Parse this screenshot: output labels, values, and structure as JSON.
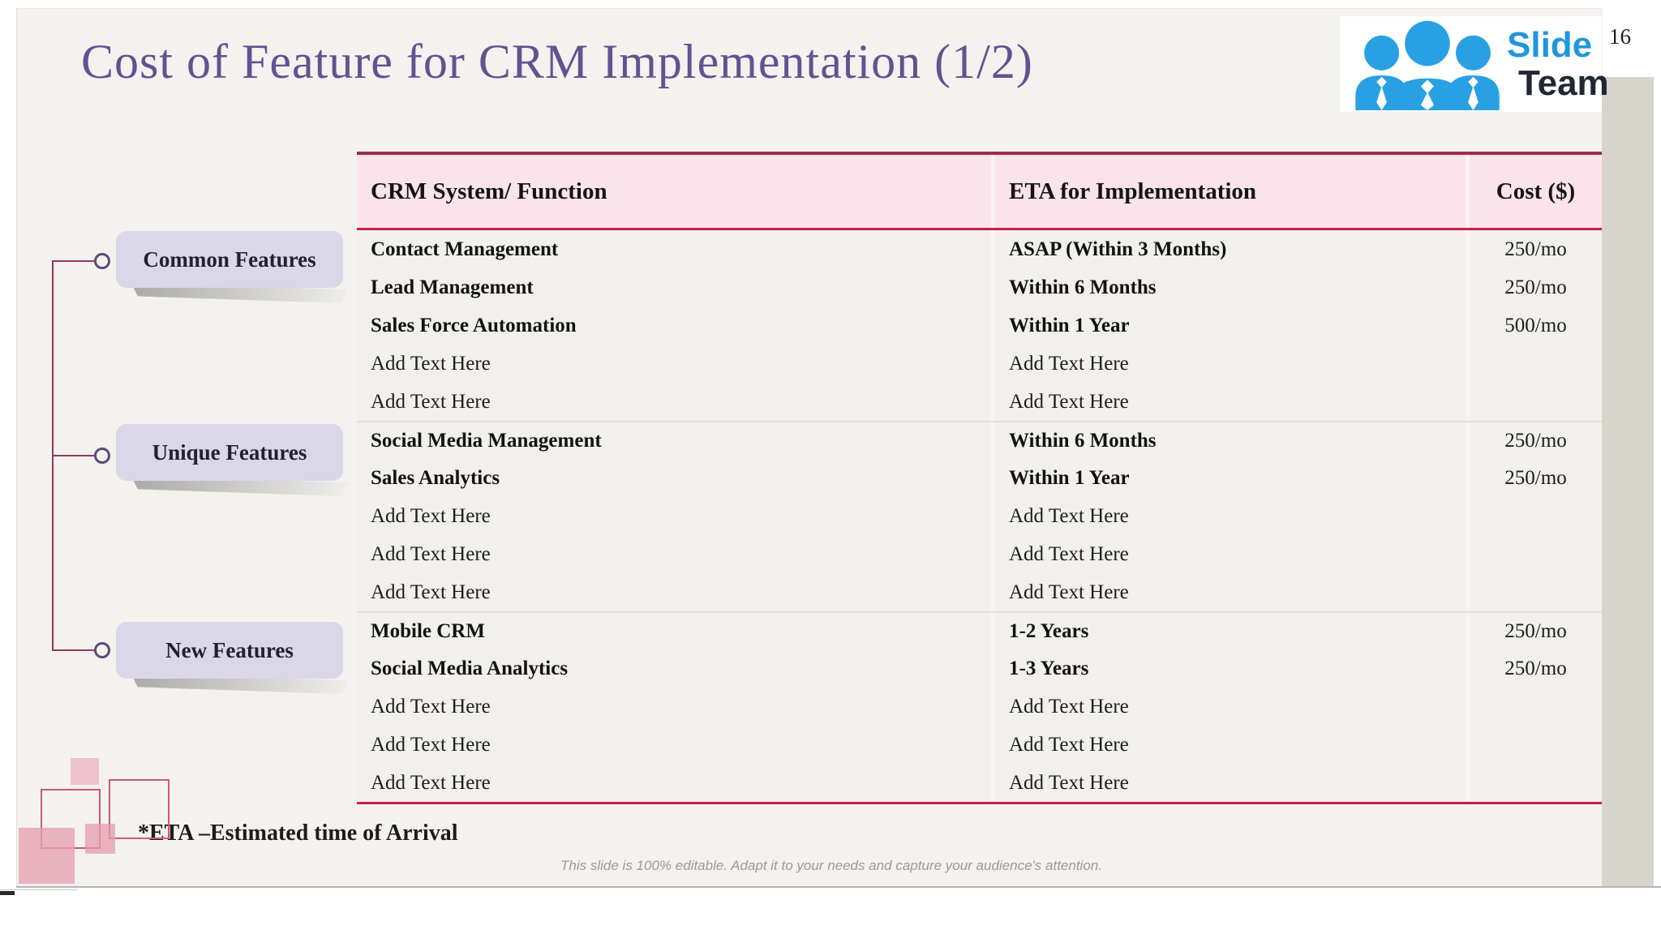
{
  "page_number": "16",
  "title": "Cost of Feature for CRM Implementation (1/2)",
  "logo": {
    "word1": "Slide",
    "word2": "Team"
  },
  "sidebar": {
    "items": [
      {
        "label": "Common Features"
      },
      {
        "label": "Unique Features"
      },
      {
        "label": "New Features"
      }
    ]
  },
  "table": {
    "columns": [
      "CRM System/ Function",
      "ETA for Implementation",
      "Cost ($)"
    ],
    "placeholder_text": "Add Text Here",
    "groups": [
      {
        "category": "Common Features",
        "rows": [
          {
            "feature": "Contact Management",
            "eta": "ASAP (Within 3 Months)",
            "cost": "250/mo"
          },
          {
            "feature": "Lead Management",
            "eta": "Within 6 Months",
            "cost": "250/mo"
          },
          {
            "feature": "Sales Force Automation",
            "eta": "Within 1 Year",
            "cost": "500/mo"
          },
          {
            "feature": "Add Text Here",
            "eta": "Add Text Here",
            "cost": ""
          },
          {
            "feature": "Add Text Here",
            "eta": "Add Text Here",
            "cost": ""
          }
        ]
      },
      {
        "category": "Unique Features",
        "rows": [
          {
            "feature": "Social Media Management",
            "eta": "Within 6 Months",
            "cost": "250/mo"
          },
          {
            "feature": "Sales Analytics",
            "eta": "Within 1 Year",
            "cost": "250/mo"
          },
          {
            "feature": "Add Text Here",
            "eta": "Add Text Here",
            "cost": ""
          },
          {
            "feature": "Add Text Here",
            "eta": "Add Text Here",
            "cost": ""
          },
          {
            "feature": "Add Text Here",
            "eta": "Add Text Here",
            "cost": ""
          }
        ]
      },
      {
        "category": "New Features",
        "rows": [
          {
            "feature": "Mobile CRM",
            "eta": "1-2 Years",
            "cost": "250/mo"
          },
          {
            "feature": "Social Media Analytics",
            "eta": "1-3 Years",
            "cost": "250/mo"
          },
          {
            "feature": "Add Text Here",
            "eta": "Add Text Here",
            "cost": ""
          },
          {
            "feature": "Add Text Here",
            "eta": "Add Text Here",
            "cost": ""
          },
          {
            "feature": "Add Text Here",
            "eta": "Add Text Here",
            "cost": ""
          }
        ]
      }
    ]
  },
  "footnote": "*ETA –Estimated time of Arrival",
  "editable_note": "This slide is 100% editable. Adapt it to your needs and capture your audience's attention.",
  "colors": {
    "title": "#615391",
    "header_bg": "#fae3eb",
    "table_top_border": "#9e2c47",
    "table_accent_border": "#c5204e",
    "label_bg": "#dad7e8",
    "connector_line": "#8f3c5f",
    "logo_blue": "#2196df",
    "logo_dark": "#212733",
    "deco_outline": "#c95b79",
    "deco_fill": "#ecbac6"
  }
}
